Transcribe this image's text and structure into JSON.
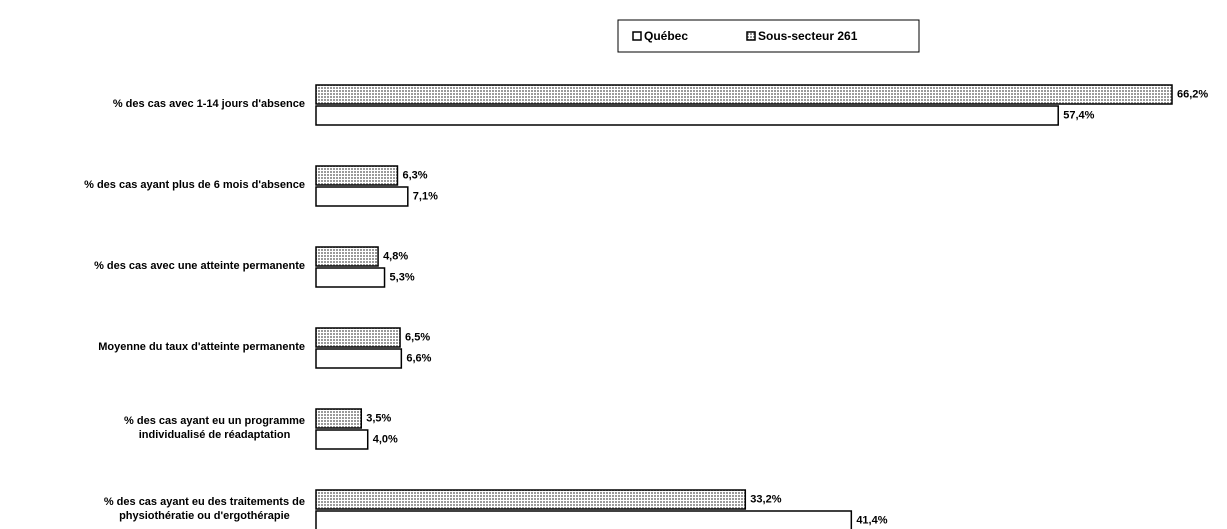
{
  "chart_data": {
    "type": "hbar",
    "categories": [
      "% des cas avec 1-14 jours d'absence",
      "% des cas ayant plus de 6 mois d'absence",
      "% des cas avec une atteinte permanente",
      "Moyenne du taux d'atteinte permanente",
      "% des cas ayant eu un programme\nindividualisé de réadaptation",
      "% des cas ayant eu des traitements de\nphysiothératie ou d'ergothérapie"
    ],
    "series": [
      {
        "name": "Québec",
        "color": "#ffffff",
        "values": [
          57.4,
          7.1,
          5.3,
          6.6,
          4.0,
          41.4
        ],
        "value_labels": [
          "57,4%",
          "7,1%",
          "5,3%",
          "6,6%",
          "4,0%",
          "41,4%"
        ]
      },
      {
        "name": "Sous-secteur 261",
        "color": "#9a9a9a",
        "values": [
          66.2,
          6.3,
          4.8,
          6.5,
          3.5,
          33.2
        ],
        "value_labels": [
          "66,2%",
          "6,3%",
          "4,8%",
          "6,5%",
          "3,5%",
          "33,2%"
        ]
      }
    ],
    "legend": "top"
  }
}
